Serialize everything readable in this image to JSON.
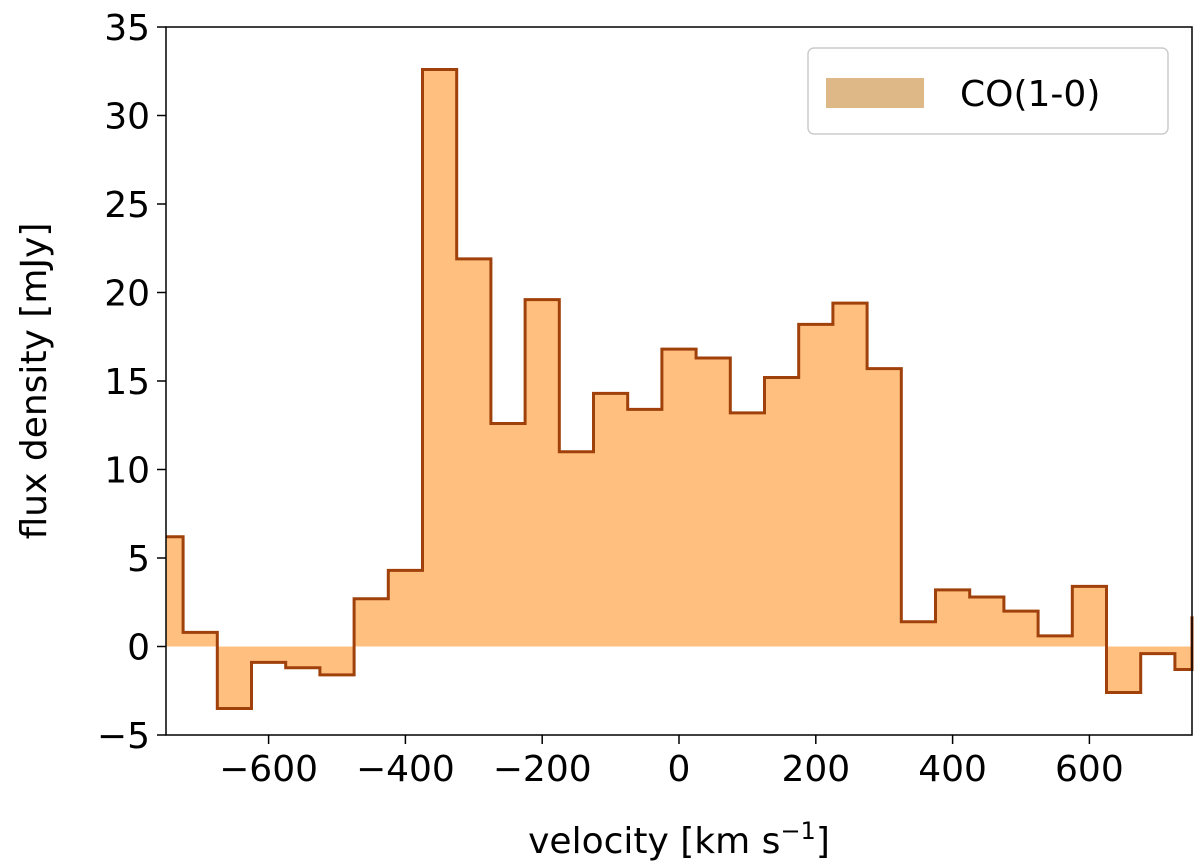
{
  "chart_data": {
    "type": "area",
    "step": "post",
    "xlabel": "velocity [km s",
    "xlabel_sup": "−1",
    "xlabel_suffix": "]",
    "ylabel": "flux density [mJy]",
    "xlim": [
      -750,
      750
    ],
    "ylim": [
      -5,
      35
    ],
    "xticks": [
      -600,
      -400,
      -200,
      0,
      200,
      400,
      600
    ],
    "xtick_labels": [
      "−600",
      "−400",
      "−200",
      "0",
      "200",
      "400",
      "600"
    ],
    "yticks": [
      -5,
      0,
      5,
      10,
      15,
      20,
      25,
      30,
      35
    ],
    "ytick_labels": [
      "−5",
      "0",
      "5",
      "10",
      "15",
      "20",
      "25",
      "30",
      "35"
    ],
    "grid": false,
    "legend_position": "top-right",
    "series": [
      {
        "name": "CO(1-0)",
        "fill_color": "#ffc07f",
        "legend_color": "#deb887",
        "line_color": "#a0400a",
        "bin_edges": [
          -750,
          -725,
          -675,
          -625,
          -575,
          -525,
          -475,
          -425,
          -375,
          -325,
          -275,
          -225,
          -175,
          -125,
          -75,
          -25,
          25,
          75,
          125,
          175,
          225,
          275,
          325,
          375,
          425,
          475,
          525,
          575,
          625,
          675,
          725,
          750
        ],
        "values": [
          6.2,
          0.8,
          -3.5,
          -0.9,
          -1.2,
          -1.6,
          2.7,
          4.3,
          32.6,
          21.9,
          12.6,
          19.6,
          11.0,
          14.3,
          13.4,
          16.8,
          16.3,
          13.2,
          15.2,
          18.2,
          19.4,
          15.7,
          1.4,
          3.2,
          2.8,
          2.0,
          0.6,
          3.4,
          -2.6,
          -0.4,
          -1.3,
          1.7
        ]
      }
    ]
  }
}
